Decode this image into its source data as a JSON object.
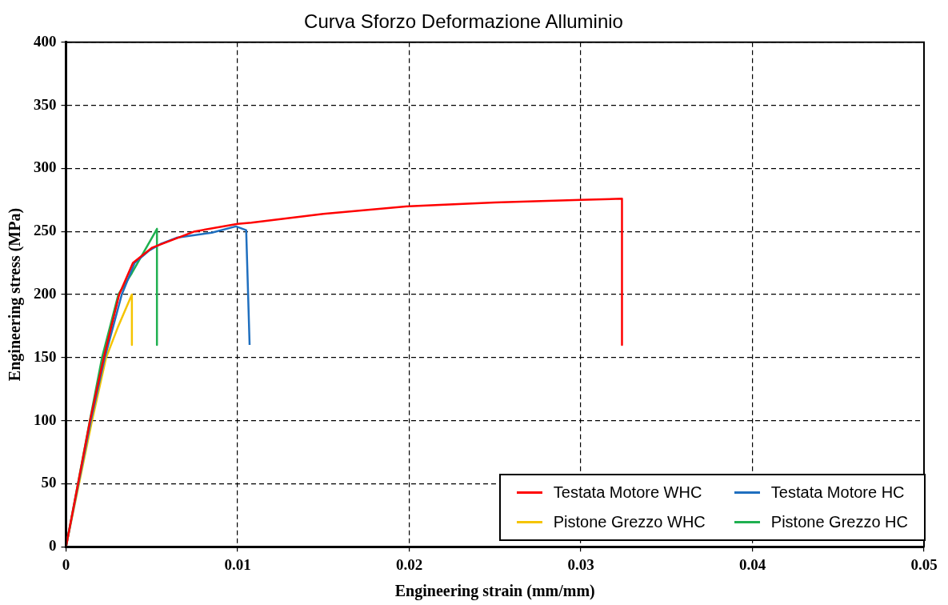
{
  "chart_data": {
    "type": "line",
    "title": "Curva Sforzo Deformazione Alluminio",
    "xlabel": "Engineering strain (mm/mm)",
    "ylabel": "Engineering stress (MPa)",
    "xlim": [
      0,
      0.05
    ],
    "xticks": [
      0,
      0.01,
      0.02,
      0.03,
      0.04,
      0.05
    ],
    "ylim": [
      0,
      400
    ],
    "yticks": [
      0,
      50,
      100,
      150,
      200,
      250,
      300,
      350,
      400
    ],
    "grid": true,
    "legend": "bottom right",
    "marker": "none",
    "line_style": "solid",
    "series": [
      {
        "name": "Testata Motore WHC",
        "color": "#ff0000",
        "x": [
          0,
          0.0014,
          0.0022,
          0.0031,
          0.0039,
          0.005,
          0.0075,
          0.01,
          0.0108,
          0.015,
          0.02,
          0.025,
          0.03,
          0.0324,
          0.0324
        ],
        "values": [
          0,
          100,
          150,
          200,
          225,
          237,
          250,
          256,
          257,
          264,
          270,
          273,
          275,
          276,
          160
        ]
      },
      {
        "name": "Testata Motore HC",
        "color": "#1f6fbf",
        "x": [
          0,
          0.00145,
          0.00226,
          0.00325,
          0.004,
          0.00486,
          0.0055,
          0.00645,
          0.0085,
          0.0099,
          0.0105,
          0.0107
        ],
        "values": [
          0,
          100,
          150,
          200,
          225,
          235,
          240,
          245,
          249,
          254,
          251,
          160
        ]
      },
      {
        "name": "Pistone Grezzo WHC",
        "color": "#f5c400",
        "x": [
          0,
          0.00152,
          0.00234,
          0.00305,
          0.00384,
          0.00384
        ],
        "values": [
          0,
          100,
          150,
          175,
          200,
          160
        ]
      },
      {
        "name": "Pistone Grezzo HC",
        "color": "#1fb050",
        "x": [
          0,
          0.00139,
          0.0021,
          0.00305,
          0.00384,
          0.0053,
          0.0053
        ],
        "values": [
          0,
          100,
          150,
          200,
          217,
          252,
          160
        ]
      }
    ]
  }
}
